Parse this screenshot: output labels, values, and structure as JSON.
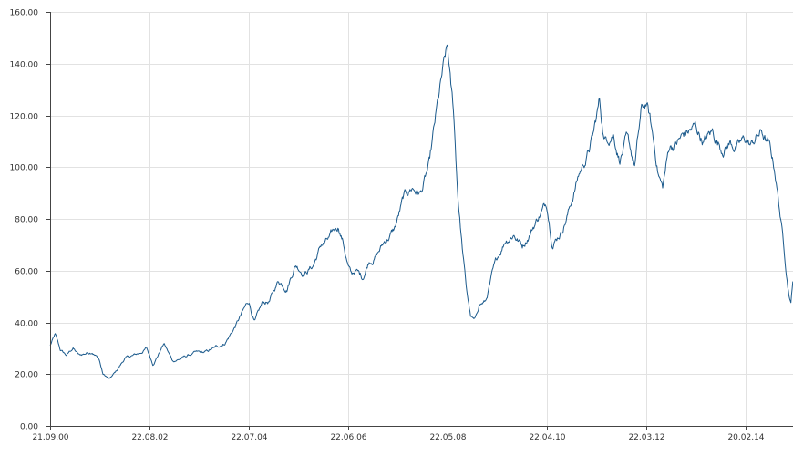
{
  "chart_data": {
    "type": "line",
    "title": "",
    "xlabel": "",
    "ylabel": "",
    "ylim": [
      0,
      160
    ],
    "y_ticks": [
      0,
      20,
      40,
      60,
      80,
      100,
      120,
      140,
      160
    ],
    "y_tick_labels": [
      "0,00",
      "20,00",
      "40,00",
      "60,00",
      "80,00",
      "100,00",
      "120,00",
      "140,00",
      "160,00"
    ],
    "x_ticks": [
      "2000-09-21",
      "2002-08-22",
      "2004-07-22",
      "2006-06-22",
      "2008-05-22",
      "2010-04-22",
      "2012-03-22",
      "2014-02-20"
    ],
    "x_tick_labels": [
      "21.09.00",
      "22.08.02",
      "22.07.04",
      "22.06.06",
      "22.05.08",
      "22.04.10",
      "22.03.12",
      "20.02.14"
    ],
    "xlim": [
      "2000-09-21",
      "2015-01-20"
    ],
    "grid": true,
    "legend": "none",
    "line_color": "#1b5a8c",
    "series": [
      {
        "x": [
          "2000-09-21",
          "2000-10-26",
          "2000-12-01",
          "2001-01-15",
          "2001-03-01",
          "2001-04-15",
          "2001-06-01",
          "2001-07-15",
          "2001-09-01",
          "2001-09-28",
          "2001-11-15",
          "2002-01-01",
          "2002-03-01",
          "2002-05-01",
          "2002-06-15",
          "2002-08-01",
          "2002-09-15",
          "2002-10-25",
          "2002-12-01",
          "2003-02-01",
          "2003-03-28",
          "2003-05-15",
          "2003-07-01",
          "2003-09-15",
          "2003-12-01",
          "2004-02-01",
          "2004-04-01",
          "2004-06-01",
          "2004-07-22",
          "2004-09-01",
          "2004-10-28",
          "2004-12-15",
          "2005-02-15",
          "2005-04-15",
          "2005-06-15",
          "2005-08-15",
          "2005-10-15",
          "2005-12-15",
          "2006-02-15",
          "2006-04-15",
          "2006-05-15",
          "2006-06-22",
          "2006-07-15",
          "2006-08-15",
          "2006-10-01",
          "2006-11-15",
          "2007-01-15",
          "2007-03-15",
          "2007-05-15",
          "2007-07-15",
          "2007-09-15",
          "2007-11-15",
          "2008-01-15",
          "2008-03-01",
          "2008-04-15",
          "2008-05-22",
          "2008-06-15",
          "2008-07-03",
          "2008-08-01",
          "2008-09-01",
          "2008-10-01",
          "2008-11-01",
          "2008-12-01",
          "2009-01-01",
          "2009-02-15",
          "2009-04-01",
          "2009-05-15",
          "2009-07-01",
          "2009-09-01",
          "2009-11-01",
          "2010-01-01",
          "2010-03-01",
          "2010-04-22",
          "2010-06-01",
          "2010-08-01",
          "2010-10-01",
          "2010-12-01",
          "2011-02-01",
          "2011-03-15",
          "2011-04-28",
          "2011-06-01",
          "2011-08-01",
          "2011-09-15",
          "2011-11-01",
          "2012-01-01",
          "2012-02-15",
          "2012-03-22",
          "2012-04-15",
          "2012-05-15",
          "2012-06-15",
          "2012-07-15",
          "2012-09-01",
          "2012-11-01",
          "2013-01-01",
          "2013-03-01",
          "2013-05-01",
          "2013-07-01",
          "2013-09-01",
          "2013-11-01",
          "2014-01-01",
          "2014-02-20",
          "2014-04-01",
          "2014-05-15",
          "2014-06-15",
          "2014-08-01",
          "2014-09-15",
          "2014-10-15",
          "2014-11-15",
          "2014-12-15",
          "2015-01-05",
          "2015-01-20"
        ],
        "y": [
          31,
          35,
          29,
          27,
          30,
          27,
          28,
          29,
          26,
          20,
          18,
          21,
          26,
          27,
          28,
          30,
          24,
          28,
          32,
          25,
          26,
          27,
          28,
          28,
          30,
          32,
          37,
          43,
          48,
          40,
          47,
          48,
          56,
          54,
          63,
          60,
          62,
          70,
          72,
          77,
          72,
          62,
          58,
          60,
          57,
          64,
          67,
          72,
          76,
          87,
          92,
          90,
          100,
          118,
          134,
          144,
          128,
          120,
          90,
          70,
          53,
          42,
          40,
          47,
          48,
          58,
          65,
          72,
          75,
          70,
          76,
          82,
          86,
          72,
          76,
          85,
          97,
          105,
          112,
          125,
          110,
          115,
          105,
          110,
          100,
          120,
          124,
          118,
          108,
          98,
          92,
          108,
          110,
          113,
          115,
          110,
          113,
          108,
          110,
          108,
          110,
          108,
          112,
          113,
          108,
          98,
          85,
          70,
          55,
          48,
          58
        ]
      }
    ]
  }
}
